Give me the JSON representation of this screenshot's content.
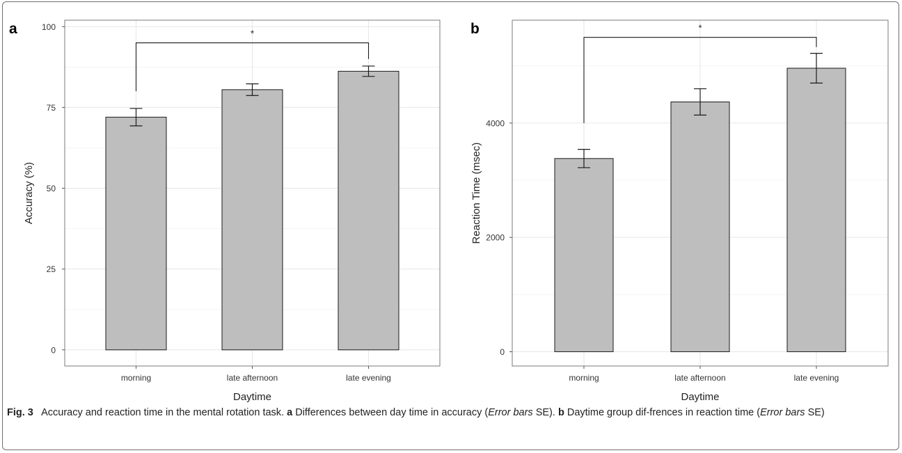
{
  "figure": {
    "label": "Fig. 3",
    "caption": {
      "title": "Accuracy and reaction time in the mental rotation task.",
      "a_letter": "a",
      "a_text": "Differences between day time in accuracy (",
      "a_italic": "Error bars",
      "a_tail": " SE).",
      "b_letter": "b",
      "b_text": "Daytime group dif-frences in reaction time (",
      "b_italic": "Error bars",
      "b_tail": " SE)"
    }
  },
  "chart_data": [
    {
      "panel": "a",
      "type": "bar",
      "xlabel": "Daytime",
      "ylabel": "Accuracy (%)",
      "categories": [
        "morning",
        "late afternoon",
        "late evening"
      ],
      "values": [
        72,
        80.5,
        86.2
      ],
      "error": [
        2.7,
        1.8,
        1.6
      ],
      "ylim": [
        -5,
        102
      ],
      "yticks": [
        0,
        25,
        50,
        75,
        100
      ],
      "grid": true,
      "bar_color": "#bebebe",
      "significance": {
        "from": 0,
        "to": 2,
        "label": "*",
        "y": 95,
        "left_start": 80,
        "right_start": 90
      }
    },
    {
      "panel": "b",
      "type": "bar",
      "xlabel": "Daytime",
      "ylabel": "Reaction Time (msec)",
      "categories": [
        "morning",
        "late afternoon",
        "late evening"
      ],
      "values": [
        3380,
        4370,
        4960
      ],
      "error": [
        160,
        230,
        260
      ],
      "ylim": [
        -250,
        5800
      ],
      "yticks": [
        0,
        2000,
        4000
      ],
      "grid": true,
      "bar_color": "#bebebe",
      "significance": {
        "from": 0,
        "to": 2,
        "label": "*",
        "y": 5500,
        "left_start": 4000,
        "right_start": 5330
      }
    }
  ]
}
